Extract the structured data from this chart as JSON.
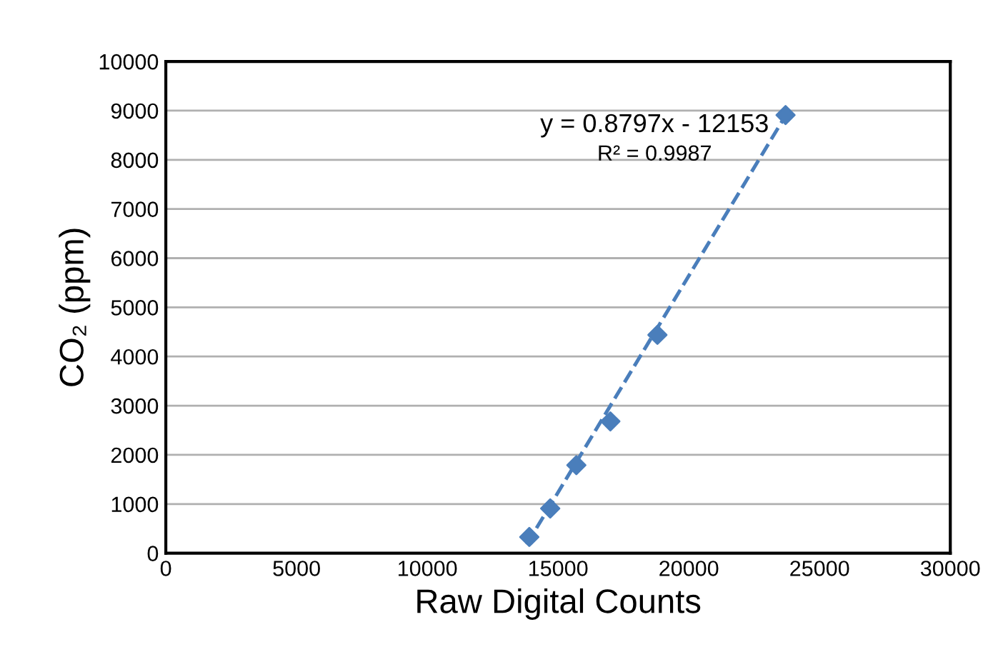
{
  "chart_data": {
    "type": "scatter",
    "xlabel": "Raw Digital Counts",
    "ylabel": "CO₂ (ppm)",
    "xlim": [
      0,
      30000
    ],
    "xticks": [
      0,
      5000,
      10000,
      15000,
      20000,
      25000,
      30000
    ],
    "ylim": [
      0,
      10000
    ],
    "yticks": [
      0,
      1000,
      2000,
      3000,
      4000,
      5000,
      6000,
      7000,
      8000,
      9000,
      10000
    ],
    "grid": "y",
    "marker": "diamond",
    "series": [
      {
        "color": "#4a7ebb",
        "x": [
          13900,
          14700,
          15700,
          17000,
          18800,
          23700
        ],
        "values": [
          330,
          910,
          1790,
          2680,
          4440,
          8910
        ]
      },
      {
        "type": "line",
        "color": "#4a7ebb",
        "line_style": "dashed",
        "marker": "none",
        "x": [
          13800,
          23700
        ],
        "values": [
          180,
          8900
        ]
      }
    ],
    "annotations": [
      "y = 0.8797x - 12153",
      "R² = 0.9987"
    ]
  }
}
